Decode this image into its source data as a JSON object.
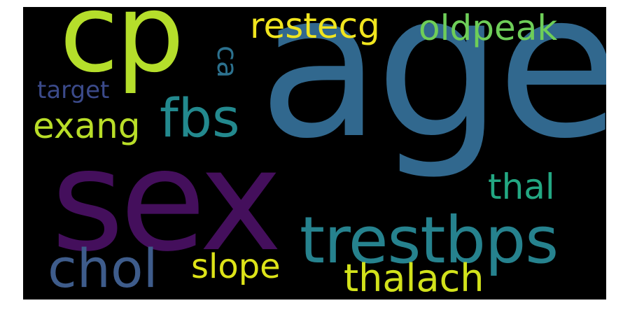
{
  "wordcloud": {
    "background": "#000000",
    "words": [
      {
        "id": "age",
        "text": "age",
        "color": "#31688e"
      },
      {
        "id": "sex",
        "text": "sex",
        "color": "#440f5c"
      },
      {
        "id": "cp",
        "text": "cp",
        "color": "#b5de2b"
      },
      {
        "id": "trestbps",
        "text": "trestbps",
        "color": "#26828e"
      },
      {
        "id": "chol",
        "text": "chol",
        "color": "#3e5c8b"
      },
      {
        "id": "fbs",
        "text": "fbs",
        "color": "#23898e"
      },
      {
        "id": "thalach",
        "text": "thalach",
        "color": "#d2e21b"
      },
      {
        "id": "restecg",
        "text": "restecg",
        "color": "#f0e51e"
      },
      {
        "id": "oldpeak",
        "text": "oldpeak",
        "color": "#6ece58"
      },
      {
        "id": "exang",
        "text": "exang",
        "color": "#b9de28"
      },
      {
        "id": "slope",
        "text": "slope",
        "color": "#dde318"
      },
      {
        "id": "thal",
        "text": "thal",
        "color": "#23a883"
      },
      {
        "id": "ca",
        "text": "ca",
        "color": "#2c718e"
      },
      {
        "id": "target",
        "text": "target",
        "color": "#3b4a8a"
      }
    ]
  }
}
